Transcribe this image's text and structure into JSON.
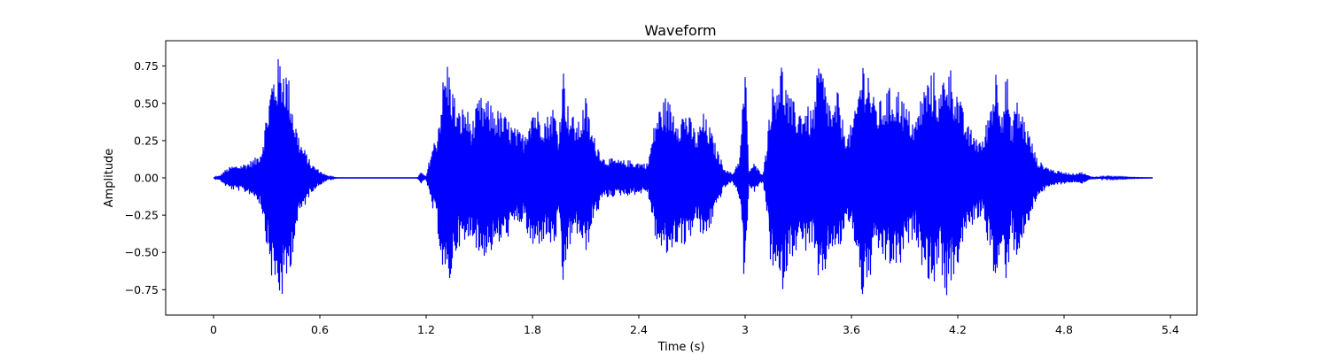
{
  "chart_data": {
    "type": "line",
    "title": "Waveform",
    "xlabel": "Time (s)",
    "ylabel": "Amplitude",
    "xlim": [
      -0.27,
      5.55
    ],
    "ylim": [
      -0.92,
      0.92
    ],
    "xticks": [
      0,
      0.6,
      1.2,
      1.8,
      2.4,
      3,
      3.6,
      4.2,
      4.8,
      5.4
    ],
    "xtick_labels": [
      "0",
      "0.6",
      "1.2",
      "1.8",
      "2.4",
      "3",
      "3.6",
      "4.2",
      "4.8",
      "5.4"
    ],
    "yticks": [
      -0.75,
      -0.5,
      -0.25,
      0.0,
      0.25,
      0.5,
      0.75
    ],
    "ytick_labels": [
      "−0.75",
      "−0.50",
      "−0.25",
      "0.00",
      "0.25",
      "0.50",
      "0.75"
    ],
    "grid": false,
    "color": "#0000ff",
    "duration": 5.3,
    "series": [
      {
        "x": [
          0.0,
          0.04,
          0.06,
          0.1,
          0.15,
          0.2,
          0.24,
          0.27,
          0.3,
          0.33,
          0.36,
          0.38,
          0.4,
          0.43,
          0.46,
          0.49,
          0.52,
          0.55,
          0.6,
          0.65,
          0.7,
          0.75,
          1.15,
          1.17,
          1.2,
          1.23,
          1.26,
          1.3,
          1.32,
          1.35,
          1.38,
          1.42,
          1.46,
          1.5,
          1.55,
          1.6,
          1.65,
          1.7,
          1.75,
          1.8,
          1.84,
          1.88,
          1.92,
          1.95,
          1.97,
          2.0,
          2.03,
          2.06,
          2.1,
          2.14,
          2.18,
          2.2,
          2.25,
          2.3,
          2.35,
          2.4,
          2.45,
          2.5,
          2.55,
          2.6,
          2.63,
          2.66,
          2.7,
          2.73,
          2.76,
          2.8,
          2.84,
          2.88,
          2.9,
          2.93,
          2.97,
          3.0,
          3.02,
          3.05,
          3.08,
          3.1,
          3.12,
          3.14,
          3.17,
          3.2,
          3.25,
          3.3,
          3.34,
          3.38,
          3.42,
          3.46,
          3.5,
          3.52,
          3.55,
          3.58,
          3.62,
          3.66,
          3.7,
          3.72,
          3.76,
          3.8,
          3.84,
          3.88,
          3.9,
          3.93,
          3.96,
          4.0,
          4.04,
          4.07,
          4.1,
          4.13,
          4.16,
          4.2,
          4.23,
          4.26,
          4.3,
          4.34,
          4.38,
          4.42,
          4.45,
          4.48,
          4.5,
          4.52,
          4.55,
          4.6,
          4.65,
          4.7,
          4.75,
          4.8,
          4.85,
          4.9,
          4.95,
          5.3
        ],
        "amplitude": [
          0.0,
          0.02,
          0.05,
          0.08,
          0.09,
          0.11,
          0.14,
          0.2,
          0.45,
          0.7,
          0.8,
          0.83,
          0.8,
          0.65,
          0.4,
          0.25,
          0.18,
          0.1,
          0.05,
          0.01,
          0.0,
          0.0,
          0.0,
          0.04,
          0.01,
          0.2,
          0.3,
          0.72,
          0.8,
          0.62,
          0.45,
          0.5,
          0.38,
          0.55,
          0.52,
          0.47,
          0.42,
          0.34,
          0.3,
          0.52,
          0.45,
          0.42,
          0.5,
          0.3,
          0.8,
          0.5,
          0.42,
          0.38,
          0.55,
          0.3,
          0.2,
          0.14,
          0.13,
          0.12,
          0.12,
          0.11,
          0.1,
          0.45,
          0.55,
          0.48,
          0.42,
          0.48,
          0.38,
          0.3,
          0.45,
          0.35,
          0.2,
          0.08,
          0.05,
          0.03,
          0.15,
          0.82,
          0.05,
          0.1,
          0.05,
          0.03,
          0.2,
          0.55,
          0.68,
          0.82,
          0.55,
          0.48,
          0.5,
          0.45,
          0.83,
          0.6,
          0.45,
          0.6,
          0.4,
          0.3,
          0.45,
          0.82,
          0.75,
          0.55,
          0.52,
          0.6,
          0.62,
          0.6,
          0.5,
          0.45,
          0.38,
          0.6,
          0.7,
          0.72,
          0.55,
          0.82,
          0.75,
          0.6,
          0.45,
          0.35,
          0.3,
          0.25,
          0.5,
          0.78,
          0.5,
          0.75,
          0.3,
          0.55,
          0.5,
          0.32,
          0.12,
          0.08,
          0.05,
          0.04,
          0.03,
          0.04,
          0.01,
          0.0
        ]
      }
    ]
  }
}
